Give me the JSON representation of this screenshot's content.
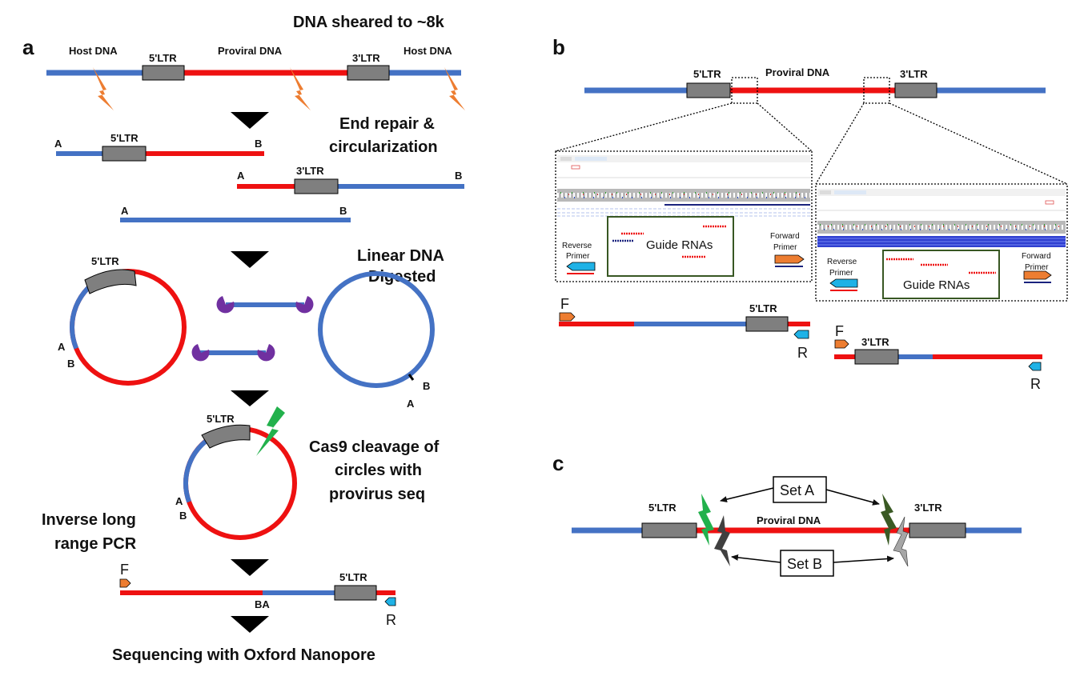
{
  "panels": {
    "a": "a",
    "b": "b",
    "c": "c"
  },
  "colors": {
    "host_dna": "#4472C4",
    "proviral_dna": "#EE1111",
    "ltr_box": "#7F7F7F",
    "shear_bolt": "#ED7D31",
    "cas9_bolt": "#22B14C",
    "exonuclease": "#7030A0",
    "forward_primer": "#ED7D31",
    "reverse_primer": "#1FB2E6",
    "guide_box_border": "#385723",
    "set_a_bolt": "#22B14C",
    "set_a_bolt_dark": "#3A5A24",
    "set_b_bolt": "#404040",
    "set_b_bolt_light": "#A6A6A6"
  },
  "panel_a": {
    "title": "DNA sheared to ~8k",
    "host_dna_left": "Host DNA",
    "ltr5": "5'LTR",
    "proviral_dna": "Proviral DNA",
    "ltr3": "3'LTR",
    "host_dna_right": "Host DNA",
    "end_repair": [
      "End repair &",
      "circularization"
    ],
    "frag1": {
      "left": "A",
      "ltr": "5'LTR",
      "right": "B"
    },
    "frag2": {
      "left": "A",
      "ltr": "3'LTR",
      "right": "B"
    },
    "frag3": {
      "left": "A",
      "right": "B"
    },
    "linear_digested": [
      "Linear DNA",
      "Digested"
    ],
    "circle1": {
      "ltr": "5'LTR",
      "a": "A",
      "b": "B"
    },
    "circle2": {
      "a": "A",
      "b": "B"
    },
    "cas9": [
      "Cas9 cleavage of",
      "circles with",
      "provirus seq"
    ],
    "circle3": {
      "ltr": "5'LTR",
      "a": "A",
      "b": "B"
    },
    "inverse_pcr": [
      "Inverse long",
      "range PCR"
    ],
    "product": {
      "f": "F",
      "ba": "BA",
      "ltr": "5'LTR",
      "r": "R"
    },
    "sequencing": "Sequencing with Oxford Nanopore"
  },
  "panel_b": {
    "ltr5": "5'LTR",
    "proviral_dna": "Proviral DNA",
    "ltr3": "3'LTR",
    "left_zoom": {
      "reverse_primer": [
        "Reverse",
        "Primer"
      ],
      "guide_rnas": "Guide RNAs",
      "forward_primer": [
        "Forward",
        "Primer"
      ]
    },
    "right_zoom": {
      "reverse_primer": [
        "Reverse",
        "Primer"
      ],
      "guide_rnas": "Guide RNAs",
      "forward_primer": [
        "Forward",
        "Primer"
      ]
    },
    "amplicon_left": {
      "f": "F",
      "ltr": "5'LTR",
      "r": "R"
    },
    "amplicon_right": {
      "f": "F",
      "ltr": "3'LTR",
      "r": "R"
    }
  },
  "panel_c": {
    "ltr5": "5'LTR",
    "proviral_dna": "Proviral DNA",
    "ltr3": "3'LTR",
    "set_a": "Set A",
    "set_b": "Set B"
  }
}
